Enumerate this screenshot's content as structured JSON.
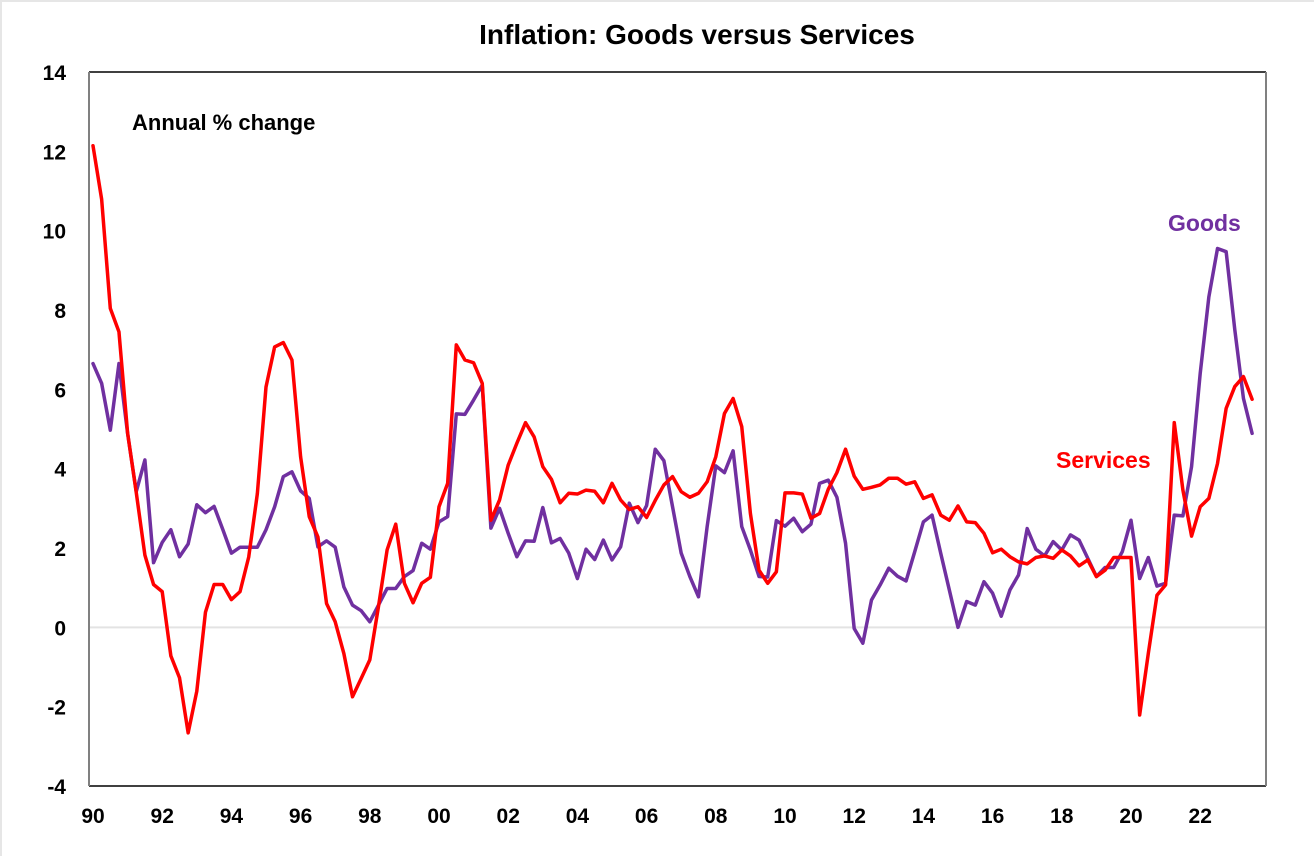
{
  "chart_data": {
    "type": "line",
    "title": "Inflation: Goods versus Services",
    "annotation": "Annual % change",
    "xlabel": "",
    "ylabel": "",
    "frequency": "quarterly",
    "start": "1990 Q1",
    "end": "2023 Q3",
    "x_range": [
      1990,
      2023.75
    ],
    "ylim": [
      -4,
      14
    ],
    "yticks": [
      -4,
      -2,
      0,
      2,
      4,
      6,
      8,
      10,
      12,
      14
    ],
    "ytick_labels": [
      "-4",
      "-2",
      "0",
      "2",
      "4",
      "6",
      "8",
      "10",
      "12",
      "14"
    ],
    "xticks": [
      1990,
      1992,
      1994,
      1996,
      1998,
      2000,
      2002,
      2004,
      2006,
      2008,
      2010,
      2012,
      2014,
      2016,
      2018,
      2020,
      2022
    ],
    "xtick_labels": [
      "90",
      "92",
      "94",
      "96",
      "98",
      "00",
      "02",
      "04",
      "06",
      "08",
      "10",
      "12",
      "14",
      "16",
      "18",
      "20",
      "22"
    ],
    "grid": false,
    "zero_line": true,
    "legend": "inline labels near series ends (Goods top-right, Services right)",
    "series": [
      {
        "name": "Goods",
        "color": "#7030A0",
        "values": [
          6.65,
          6.15,
          4.97,
          6.65,
          4.89,
          3.42,
          4.22,
          1.63,
          2.14,
          2.46,
          1.78,
          2.1,
          3.09,
          2.89,
          3.05,
          2.47,
          1.87,
          2.02,
          2.02,
          2.02,
          2.46,
          3.04,
          3.8,
          3.92,
          3.44,
          3.25,
          2.03,
          2.18,
          2.02,
          1.02,
          0.56,
          0.42,
          0.14,
          0.56,
          0.98,
          0.98,
          1.28,
          1.43,
          2.12,
          1.97,
          2.66,
          2.79,
          5.38,
          5.37,
          5.73,
          6.11,
          2.5,
          3.0,
          2.37,
          1.78,
          2.18,
          2.17,
          3.02,
          2.13,
          2.24,
          1.87,
          1.23,
          1.97,
          1.71,
          2.2,
          1.7,
          2.03,
          3.13,
          2.64,
          3.07,
          4.49,
          4.2,
          3.04,
          1.87,
          1.28,
          0.77,
          2.54,
          4.07,
          3.9,
          4.45,
          2.54,
          1.95,
          1.28,
          1.27,
          2.69,
          2.55,
          2.75,
          2.41,
          2.6,
          3.63,
          3.71,
          3.28,
          2.12,
          -0.03,
          -0.4,
          0.69,
          1.07,
          1.49,
          1.29,
          1.17,
          1.91,
          2.66,
          2.83,
          1.87,
          0.94,
          0.0,
          0.65,
          0.56,
          1.15,
          0.86,
          0.28,
          0.94,
          1.32,
          2.49,
          1.97,
          1.8,
          2.16,
          1.95,
          2.33,
          2.2,
          1.74,
          1.28,
          1.51,
          1.51,
          1.91,
          2.7,
          1.23,
          1.76,
          1.04,
          1.11,
          2.83,
          2.81,
          4.05,
          6.4,
          8.33,
          9.55,
          9.47,
          7.5,
          5.77,
          4.89
        ]
      },
      {
        "name": "Services",
        "color": "#FF0000",
        "values": [
          12.14,
          10.79,
          8.04,
          7.45,
          4.9,
          3.4,
          1.82,
          1.08,
          0.9,
          -0.72,
          -1.27,
          -2.66,
          -1.61,
          0.38,
          1.08,
          1.08,
          0.7,
          0.9,
          1.77,
          3.37,
          6.06,
          7.07,
          7.18,
          6.74,
          4.3,
          2.79,
          2.28,
          0.6,
          0.14,
          -0.66,
          -1.75,
          -1.29,
          -0.82,
          0.52,
          1.95,
          2.6,
          1.11,
          0.62,
          1.11,
          1.26,
          3.04,
          3.63,
          7.12,
          6.74,
          6.67,
          6.15,
          2.7,
          3.21,
          4.09,
          4.64,
          5.16,
          4.8,
          4.05,
          3.73,
          3.14,
          3.38,
          3.36,
          3.46,
          3.43,
          3.14,
          3.63,
          3.21,
          2.97,
          3.04,
          2.77,
          3.2,
          3.59,
          3.8,
          3.42,
          3.28,
          3.38,
          3.67,
          4.3,
          5.39,
          5.77,
          5.06,
          2.87,
          1.44,
          1.11,
          1.4,
          3.39,
          3.39,
          3.36,
          2.75,
          2.87,
          3.48,
          3.9,
          4.49,
          3.81,
          3.48,
          3.53,
          3.59,
          3.76,
          3.76,
          3.61,
          3.67,
          3.25,
          3.34,
          2.83,
          2.7,
          3.06,
          2.66,
          2.64,
          2.37,
          1.88,
          1.97,
          1.78,
          1.65,
          1.6,
          1.76,
          1.8,
          1.74,
          1.95,
          1.8,
          1.55,
          1.7,
          1.28,
          1.44,
          1.76,
          1.76,
          1.76,
          -2.21,
          -0.66,
          0.81,
          1.07,
          5.16,
          3.46,
          2.3,
          3.04,
          3.25,
          4.13,
          5.52,
          6.07,
          6.32,
          5.75
        ]
      }
    ]
  }
}
